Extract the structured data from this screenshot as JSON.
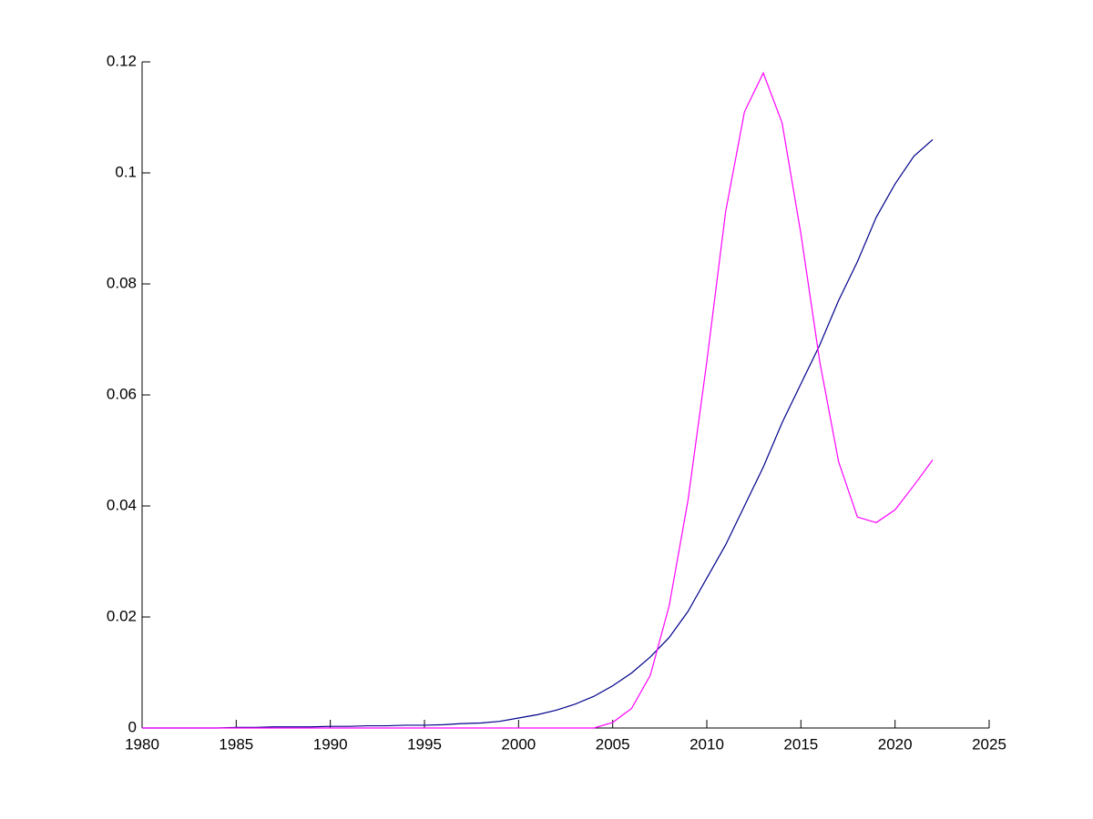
{
  "chart_data": {
    "type": "line",
    "x": [
      1980,
      1981,
      1982,
      1983,
      1984,
      1985,
      1986,
      1987,
      1988,
      1989,
      1990,
      1991,
      1992,
      1993,
      1994,
      1995,
      1996,
      1997,
      1998,
      1999,
      2000,
      2001,
      2002,
      2003,
      2004,
      2005,
      2006,
      2007,
      2008,
      2009,
      2010,
      2011,
      2012,
      2013,
      2014,
      2015,
      2016,
      2017,
      2018,
      2019,
      2020,
      2021,
      2022
    ],
    "series": [
      {
        "color": "#00008b",
        "values": [
          0,
          0,
          0,
          0,
          0,
          0.0001,
          0.0001,
          0.0002,
          0.0002,
          0.0002,
          0.0003,
          0.0003,
          0.0004,
          0.0004,
          0.0005,
          0.0005,
          0.0006,
          0.0008,
          0.0009,
          0.0012,
          0.0018,
          0.0024,
          0.0032,
          0.0043,
          0.0057,
          0.0076,
          0.0099,
          0.0128,
          0.0163,
          0.021,
          0.027,
          0.033,
          0.04,
          0.047,
          0.055,
          0.062,
          0.069,
          0.077,
          0.084,
          0.092,
          0.098,
          0.103,
          0.106
        ]
      },
      {
        "color": "#ff00ff",
        "values": [
          0,
          0,
          0,
          0,
          0,
          0,
          0,
          0,
          0,
          0,
          0,
          0,
          0,
          0,
          0,
          0,
          0,
          0,
          0,
          0,
          0,
          0,
          0,
          0,
          0,
          0.001,
          0.0035,
          0.0095,
          0.022,
          0.041,
          0.066,
          0.093,
          0.111,
          0.118,
          0.109,
          0.089,
          0.066,
          0.048,
          0.038,
          0.037,
          0.0393,
          0.0437,
          0.0483
        ]
      }
    ],
    "xlim": [
      1980,
      2025
    ],
    "xticks": [
      1980,
      1985,
      1990,
      1995,
      2000,
      2005,
      2010,
      2015,
      2020,
      2025
    ],
    "ylim": [
      0,
      0.12
    ],
    "yticks": [
      0,
      0.02,
      0.04,
      0.06,
      0.08,
      0.1,
      0.12
    ],
    "grid": false
  }
}
